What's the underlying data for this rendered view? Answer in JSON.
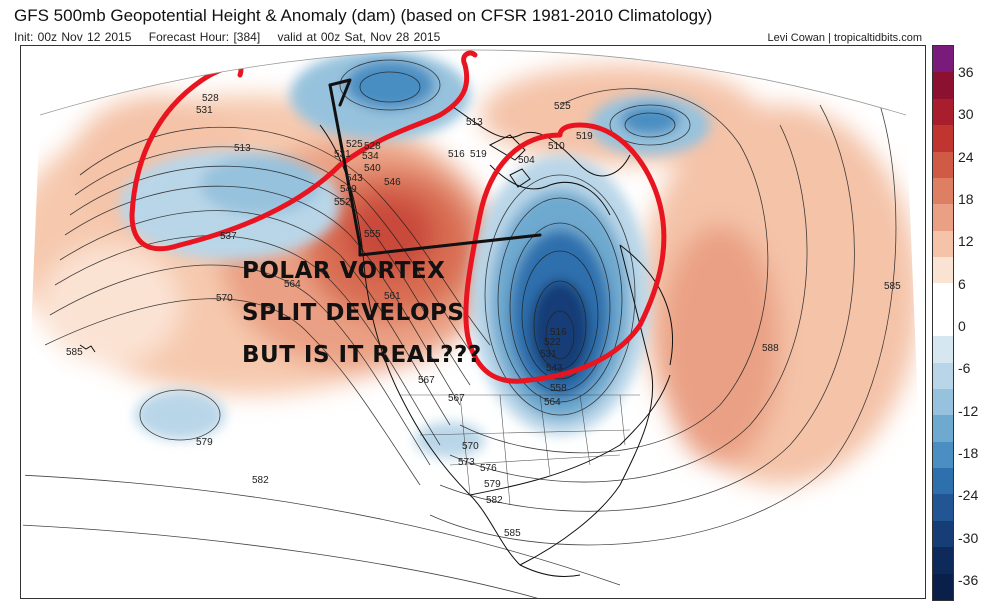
{
  "header": {
    "title": "GFS 500mb Geopotential Height & Anomaly (dam) (based on CFSR 1981-2010 Climatology)",
    "init": "Init: 00z Nov 12 2015",
    "forecast_hour": "Forecast Hour: [384]",
    "valid": "valid at 00z Sat, Nov 28 2015",
    "credit": "Levi Cowan | tropicaltidbits.com"
  },
  "annotation": {
    "line1": "POLAR VORTEX",
    "line2": "SPLIT DEVELOPS",
    "line3": "BUT IS IT REAL???"
  },
  "colorbar": {
    "labels": [
      "36",
      "30",
      "24",
      "18",
      "12",
      "6",
      "0",
      "-6",
      "-12",
      "-18",
      "-24",
      "-30",
      "-36"
    ],
    "colors": [
      "#7a1a7a",
      "#8c1030",
      "#a81e2c",
      "#c03530",
      "#cf5a45",
      "#de7f63",
      "#eaa084",
      "#f4c3a8",
      "#fbe3d4",
      "#ffffff",
      "#ffffff",
      "#d6e7f1",
      "#b9d6e8",
      "#97c2dd",
      "#6ea9cf",
      "#4a8ec2",
      "#2e70ad",
      "#215593",
      "#173d77",
      "#0e2a5c",
      "#0a1f4a"
    ]
  },
  "contour_labels": [
    {
      "text": "528"
    },
    {
      "text": "531"
    },
    {
      "text": "513"
    },
    {
      "text": "537"
    },
    {
      "text": "525"
    },
    {
      "text": "531"
    },
    {
      "text": "528"
    },
    {
      "text": "534"
    },
    {
      "text": "540"
    },
    {
      "text": "543"
    },
    {
      "text": "546"
    },
    {
      "text": "549"
    },
    {
      "text": "552"
    },
    {
      "text": "555"
    },
    {
      "text": "564"
    },
    {
      "text": "561"
    },
    {
      "text": "570"
    },
    {
      "text": "585"
    },
    {
      "text": "567"
    },
    {
      "text": "567"
    },
    {
      "text": "525"
    },
    {
      "text": "519"
    },
    {
      "text": "510"
    },
    {
      "text": "504"
    },
    {
      "text": "516"
    },
    {
      "text": "519"
    },
    {
      "text": "516"
    },
    {
      "text": "522"
    },
    {
      "text": "531"
    },
    {
      "text": "543"
    },
    {
      "text": "558"
    },
    {
      "text": "564"
    },
    {
      "text": "579"
    },
    {
      "text": "570"
    },
    {
      "text": "573"
    },
    {
      "text": "576"
    },
    {
      "text": "579"
    },
    {
      "text": "582"
    },
    {
      "text": "582"
    },
    {
      "text": "585"
    },
    {
      "text": "588"
    },
    {
      "text": "585"
    },
    {
      "text": "513"
    }
  ]
}
